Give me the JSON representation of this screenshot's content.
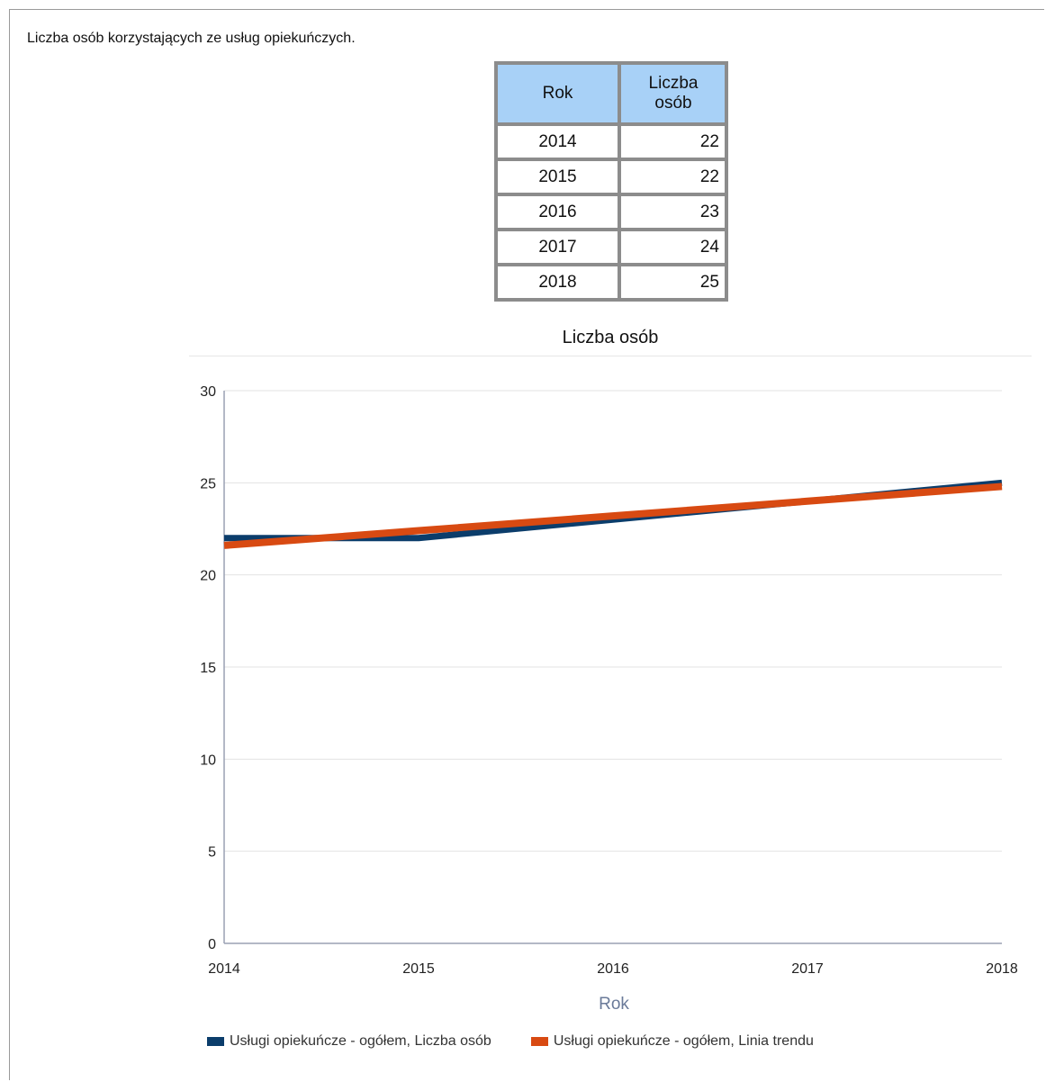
{
  "page": {
    "title": "Liczba osób korzystających ze usług opiekuńczych."
  },
  "table": {
    "headers": [
      "Rok",
      "Liczba osób"
    ],
    "rows": [
      [
        "2014",
        "22"
      ],
      [
        "2015",
        "22"
      ],
      [
        "2016",
        "23"
      ],
      [
        "2017",
        "24"
      ],
      [
        "2018",
        "25"
      ]
    ]
  },
  "chart_data": {
    "type": "line",
    "title": "Liczba osób",
    "xlabel": "Rok",
    "ylabel": "",
    "x": [
      2014,
      2015,
      2016,
      2017,
      2018
    ],
    "xlim": [
      2014,
      2018
    ],
    "ylim": [
      0,
      30
    ],
    "yticks": [
      0,
      5,
      10,
      15,
      20,
      25,
      30
    ],
    "grid": true,
    "legend_position": "bottom",
    "series": [
      {
        "name": "Usługi opiekuńcze - ogółem, Liczba osób",
        "values": [
          22,
          22,
          23,
          24,
          25
        ],
        "color": "#0b3d6b"
      },
      {
        "name": "Usługi opiekuńcze - ogółem, Linia trendu",
        "values": [
          21.6,
          22.4,
          23.2,
          24.0,
          24.8
        ],
        "color": "#d84a12"
      }
    ]
  }
}
